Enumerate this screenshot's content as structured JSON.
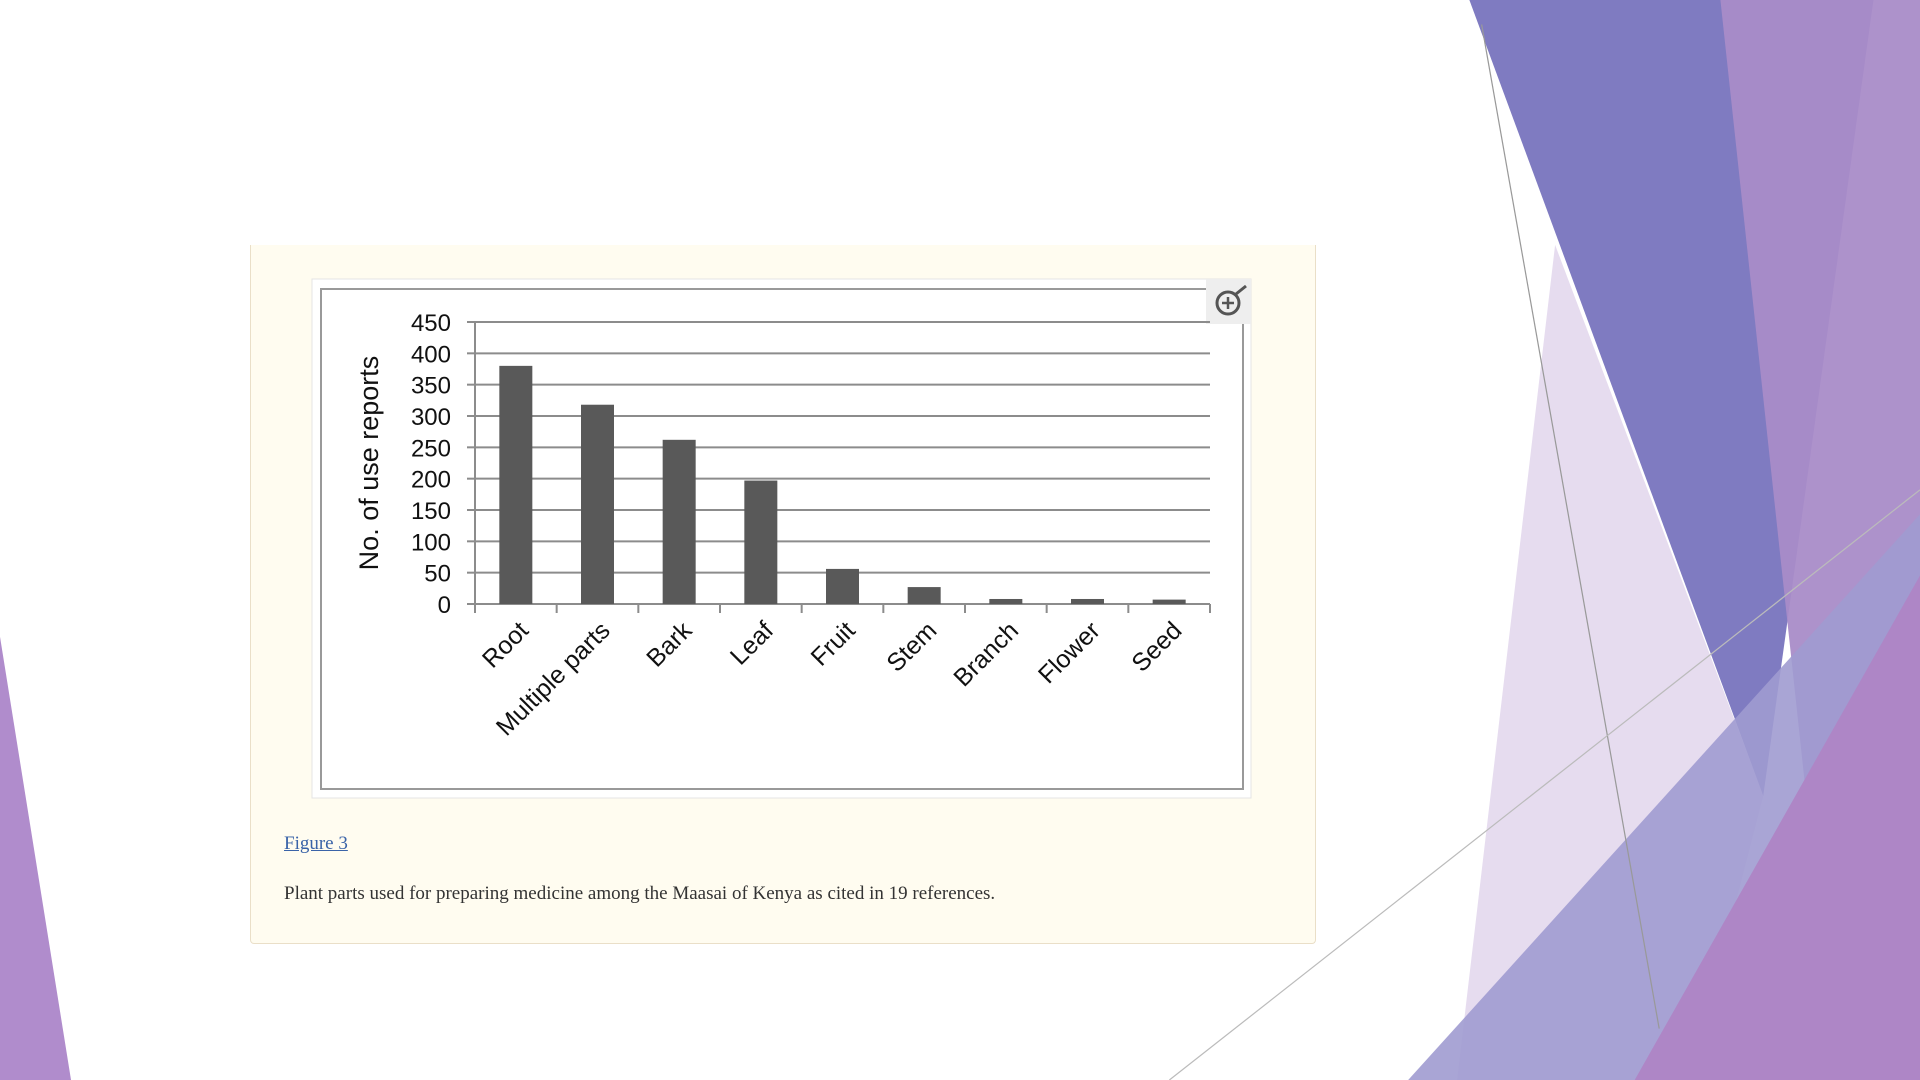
{
  "chart_data": {
    "type": "bar",
    "y_label": "No. of use reports",
    "categories": [
      "Root",
      "Multiple parts",
      "Bark",
      "Leaf",
      "Fruit",
      "Stem",
      "Branch",
      "Flower",
      "Seed"
    ],
    "values": [
      380,
      318,
      262,
      197,
      56,
      27,
      8,
      8,
      7
    ],
    "color": "#595959",
    "ylim": [
      0,
      450
    ],
    "yticks": [
      0,
      50,
      100,
      150,
      200,
      250,
      300,
      350,
      400,
      450
    ],
    "grid": true
  },
  "figure": {
    "link": "Figure 3",
    "caption": "Plant parts used for preparing medicine among the Maasai of Kenya as cited in 19 references."
  }
}
